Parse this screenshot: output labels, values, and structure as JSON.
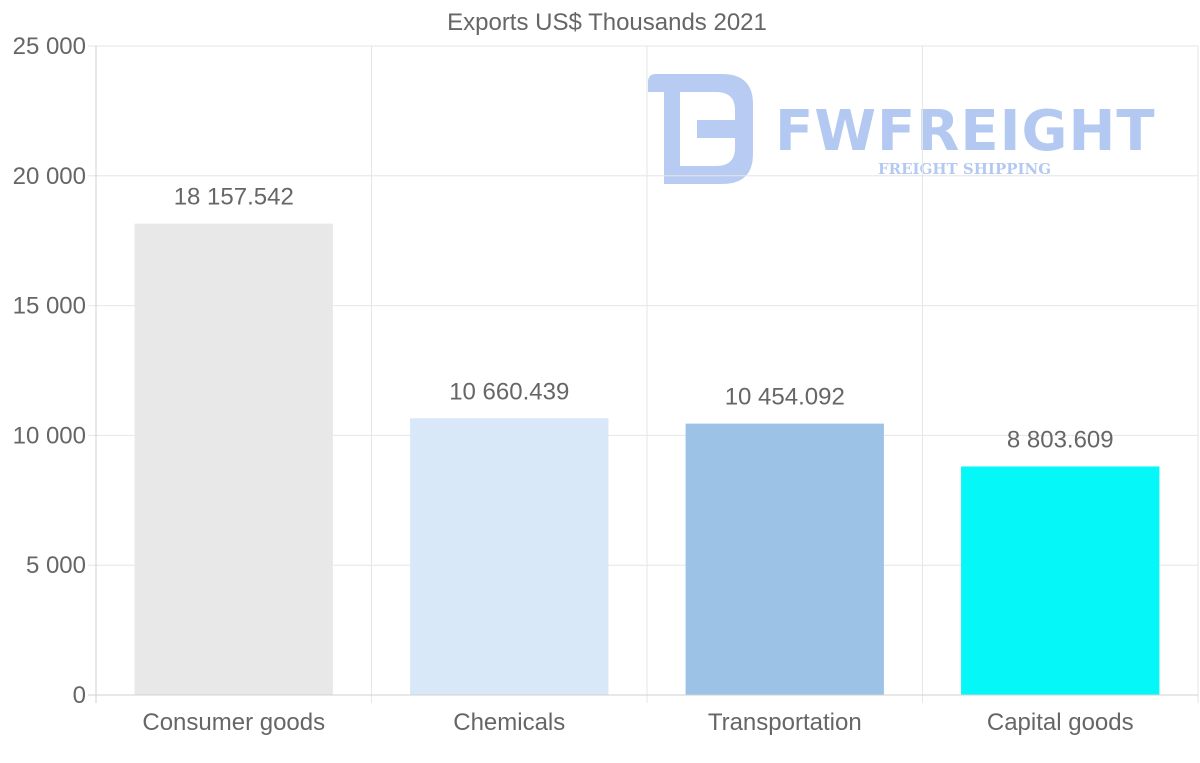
{
  "watermark": {
    "name": "FWFREIGHT",
    "tagline": "FREIGHT SHIPPING",
    "color": "#b4c9f2"
  },
  "chart_data": {
    "type": "bar",
    "title": "Exports US$ Thousands 2021",
    "xlabel": "",
    "ylabel": "",
    "ylim": [
      0,
      25000
    ],
    "yticks": [
      0,
      5000,
      10000,
      15000,
      20000,
      25000
    ],
    "ytick_labels": [
      "0",
      "5 000",
      "10 000",
      "15 000",
      "20 000",
      "25 000"
    ],
    "grid": true,
    "legend": "none",
    "categories": [
      "Consumer goods",
      "Chemicals",
      "Transportation",
      "Capital goods"
    ],
    "values": [
      18157.542,
      10660.439,
      10454.092,
      8803.609
    ],
    "value_labels": [
      "18 157.542",
      "10 660.439",
      "10 454.092",
      "8 803.609"
    ],
    "colors": [
      "#e8e8e8",
      "#d8e8f8",
      "#9cc3e6",
      "#05f7f7"
    ]
  }
}
